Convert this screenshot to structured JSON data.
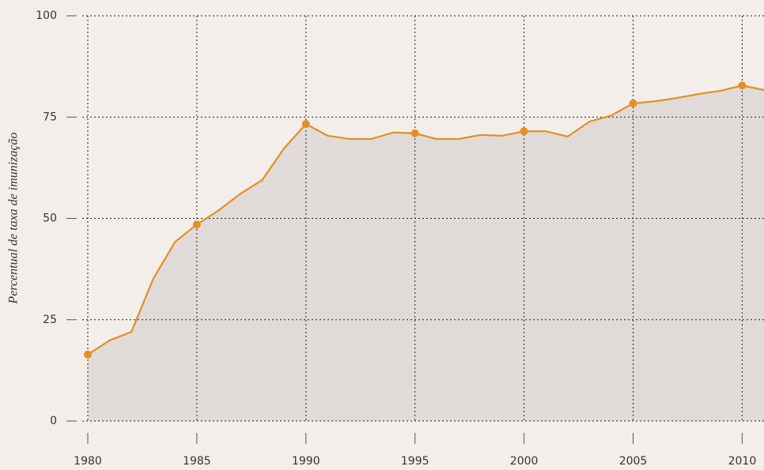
{
  "chart_data": {
    "type": "area",
    "y_label": "Percentual de taxa de imunização",
    "x": [
      1980,
      1981,
      1982,
      1983,
      1984,
      1985,
      1986,
      1987,
      1988,
      1989,
      1990,
      1991,
      1992,
      1993,
      1994,
      1995,
      1996,
      1997,
      1998,
      1999,
      2000,
      2001,
      2002,
      2003,
      2004,
      2005,
      2006,
      2007,
      2008,
      2009,
      2010,
      2011
    ],
    "values": [
      16.4,
      19.9,
      22.0,
      35.1,
      44.2,
      48.5,
      52.0,
      56.1,
      59.5,
      67.3,
      73.3,
      70.4,
      69.6,
      69.6,
      71.2,
      71.0,
      69.6,
      69.6,
      70.6,
      70.4,
      71.5,
      71.5,
      70.2,
      73.9,
      75.4,
      78.4,
      78.9,
      79.7,
      80.7,
      81.5,
      82.8,
      81.7
    ],
    "color": "#e38f25",
    "fill_color": "#e0dbd8",
    "xlim": [
      1980,
      2011
    ],
    "xticks": [
      1980,
      1985,
      1990,
      1995,
      2000,
      2005,
      2010
    ],
    "ylim": [
      0,
      100
    ],
    "yticks": [
      0,
      25,
      50,
      75,
      100
    ],
    "grid": true
  }
}
